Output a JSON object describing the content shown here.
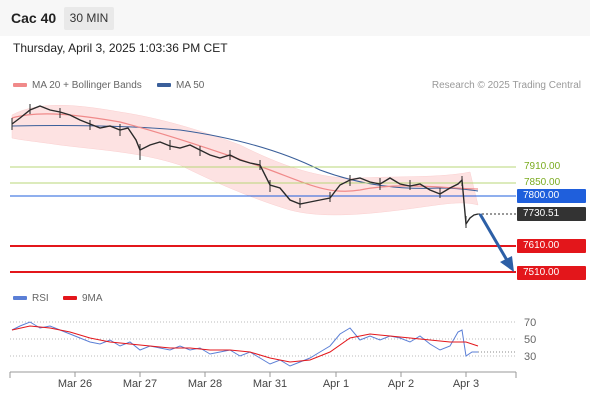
{
  "header": {
    "symbol": "Cac 40",
    "timeframe": "30 MIN"
  },
  "datetime": "Thursday, April 3, 2025 1:03:36 PM CET",
  "legend": {
    "ma20_bb": "MA 20 + Bollinger Bands",
    "ma50": "MA 50",
    "research": "Research © 2025 Trading Central"
  },
  "rsi_legend": {
    "rsi": "RSI",
    "ma9": "9MA"
  },
  "levels": {
    "r2": "7910.00",
    "r1": "7850.00",
    "pivot": "7800.00",
    "last": "7730.51",
    "s1": "7610.00",
    "s2": "7510.00"
  },
  "rsi_ticks": [
    "70",
    "50",
    "30"
  ],
  "x_labels": [
    "Mar 26",
    "Mar 27",
    "Mar 28",
    "Mar 31",
    "Apr 1",
    "Apr 2",
    "Apr 3"
  ],
  "colors": {
    "resistance_green": "#7aab1f",
    "pivot_blue": "#1f5fdc",
    "support_red": "#e3161b",
    "last_price": "#333333",
    "bollinger_fill": "#fde2e2",
    "ma20": "#f08a8a",
    "ma50": "#3a5f9a",
    "rsi": "#5b7fd6",
    "rsi_ma": "#e3161b",
    "arrow": "#2d5fa6"
  },
  "chart_data": {
    "type": "line",
    "title": "Cac 40",
    "timeframe": "30 MIN",
    "x": [
      "Mar 26",
      "Mar 27",
      "Mar 28",
      "Mar 31",
      "Apr 1",
      "Apr 2",
      "Apr 3"
    ],
    "series": [
      {
        "name": "Cac 40",
        "values": [
          8090,
          8040,
          7970,
          7830,
          7820,
          7830,
          7730.51
        ]
      }
    ],
    "horizontal_levels": [
      7910.0,
      7850.0,
      7800.0,
      7730.51,
      7610.0,
      7510.0
    ],
    "indicators": [
      "MA 20 + Bollinger Bands",
      "MA 50",
      "RSI",
      "9MA"
    ],
    "rsi_ticks": [
      70,
      50,
      30
    ],
    "forecast": "down toward 7510.00",
    "legend_position": "top-left"
  }
}
